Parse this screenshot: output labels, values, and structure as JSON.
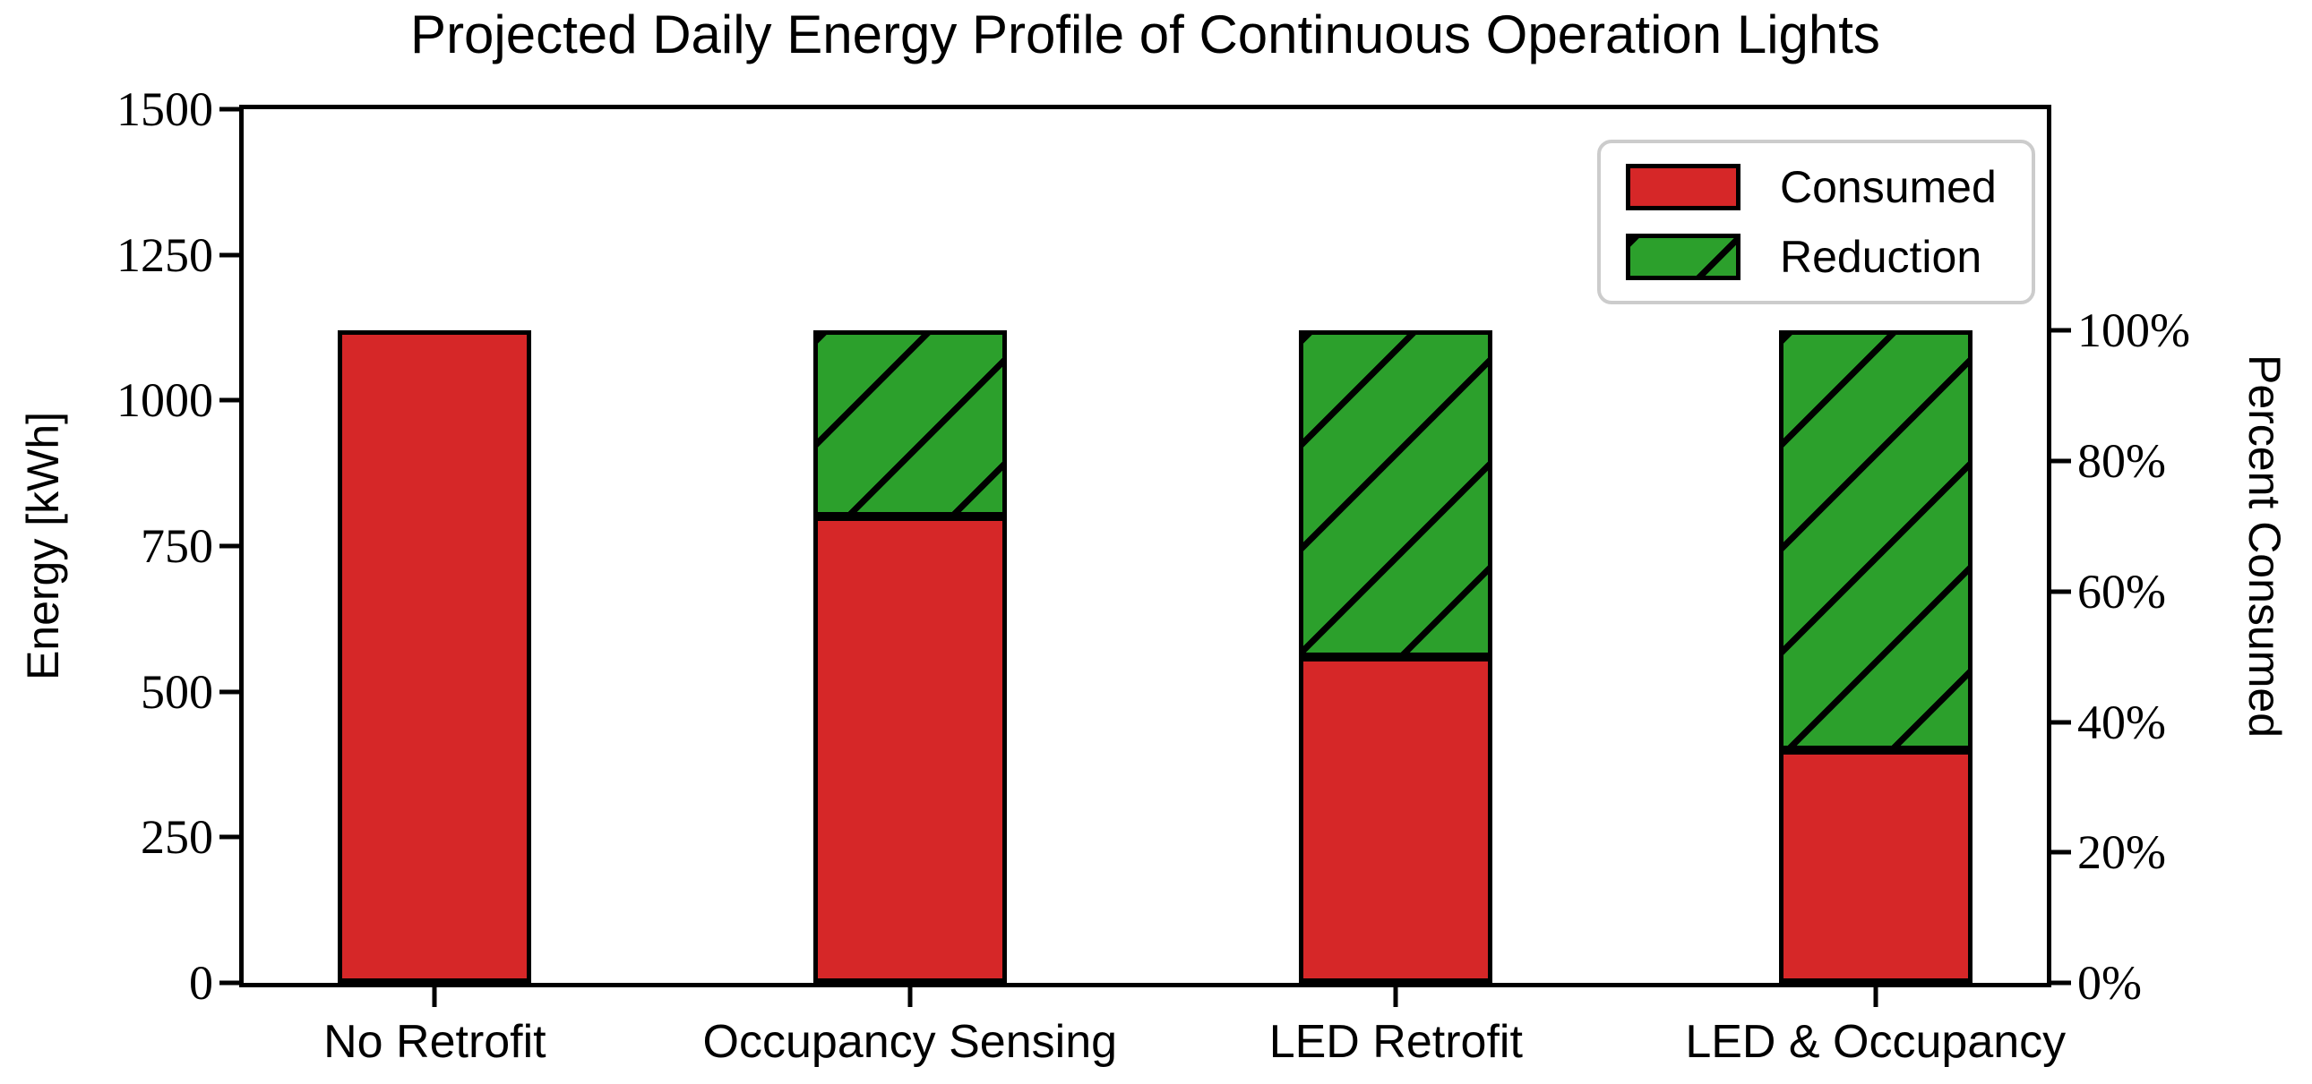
{
  "figure": {
    "background": "#ffffff",
    "text_color": "#000000",
    "legend_border_color": "#cccccc"
  },
  "chart_data": {
    "type": "bar",
    "stacked": true,
    "title": "Projected Daily Energy Profile of Continuous Operation Lights",
    "categories": [
      "No Retrofit",
      "Occupancy Sensing",
      "LED Retrofit",
      "LED & Occupancy"
    ],
    "series": [
      {
        "name": "Consumed",
        "color": "#d62728",
        "hatch": "none",
        "values": [
          1120,
          800,
          560,
          400
        ]
      },
      {
        "name": "Reduction",
        "color": "#2ca02c",
        "hatch": "/",
        "values": [
          0,
          320,
          560,
          720
        ]
      }
    ],
    "bar_totals_kwh": [
      1120,
      1120,
      1120,
      1120
    ],
    "consumed_percent": [
      100,
      71.4,
      50,
      35.7
    ],
    "ylabel": "Energy [kWh]",
    "ylabel_right": "Percent Consumed",
    "y_left": {
      "min": 0,
      "max": 1500,
      "ticks": [
        0,
        250,
        500,
        750,
        1000,
        1250,
        1500
      ]
    },
    "y_right": {
      "ticks_pct": [
        0,
        20,
        40,
        60,
        80,
        100
      ],
      "pct_100_equals_kwh": 1120,
      "tick_suffix": "%"
    },
    "legend": {
      "position": "upper right",
      "entries": [
        "Consumed",
        "Reduction"
      ]
    },
    "layout": {
      "grid": false,
      "bar_centers_pct": [
        10.6,
        36.95,
        63.9,
        90.5
      ],
      "bar_width_pct": 10.73,
      "hatch_angle_deg": 45
    }
  }
}
